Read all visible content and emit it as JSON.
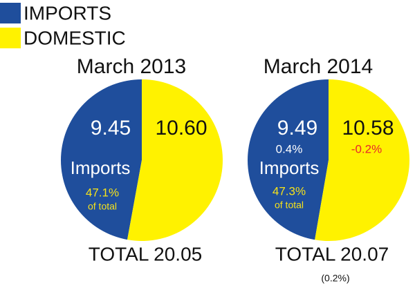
{
  "chart_data": {
    "type": "pie",
    "categories": [
      "IMPORTS",
      "DOMESTIC"
    ],
    "colors": [
      "#1f4e9c",
      "#fff200"
    ],
    "pies": [
      {
        "title": "March 2013",
        "values": [
          9.45,
          10.6
        ],
        "value_labels": [
          "9.45",
          "10.60"
        ],
        "annotations": [
          {
            "text": "Imports",
            "color": "#ffffff"
          },
          {
            "text": "47.1%",
            "color": "#f6e21a"
          },
          {
            "text": "of total",
            "color": "#f6e21a"
          }
        ],
        "footer": [
          "TOTAL 20.05"
        ]
      },
      {
        "title": "March 2014",
        "values": [
          9.49,
          10.58
        ],
        "value_labels": [
          "9.49",
          "10.58"
        ],
        "annotations": [
          {
            "text": "0.4%",
            "color": "#ffffff"
          },
          {
            "text": "-0.2%",
            "color": "#e8262a"
          },
          {
            "text": "Imports",
            "color": "#ffffff"
          },
          {
            "text": "47.3%",
            "color": "#f6e21a"
          },
          {
            "text": "of total",
            "color": "#f6e21a"
          }
        ],
        "footer": [
          "TOTAL 20.07",
          "(0.2%)"
        ]
      }
    ]
  }
}
